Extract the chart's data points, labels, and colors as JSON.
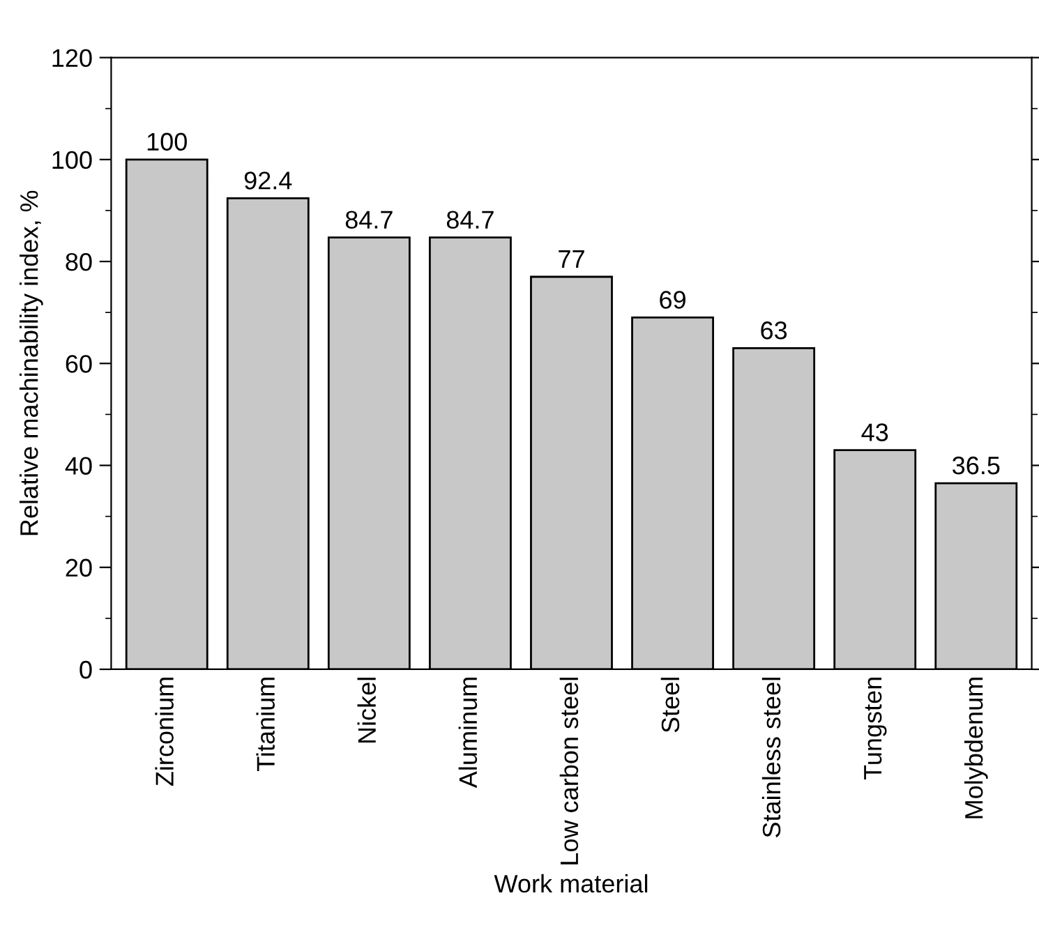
{
  "chart_data": {
    "type": "bar",
    "xlabel": "Work material",
    "ylabel": "Relative machinability index, %",
    "categories": [
      "Zirconium",
      "Titanium",
      "Nickel",
      "Aluminum",
      "Low carbon steel",
      "Steel",
      "Stainless steel",
      "Tungsten",
      "Molybdenum"
    ],
    "values": [
      100,
      92.4,
      84.7,
      84.7,
      77,
      69,
      63,
      43,
      36.5
    ],
    "color": "#c8c8c8",
    "ylim": [
      0,
      120
    ],
    "yticks": [
      0,
      20,
      40,
      60,
      80,
      100,
      120
    ],
    "grid": false,
    "data_labels": true
  }
}
